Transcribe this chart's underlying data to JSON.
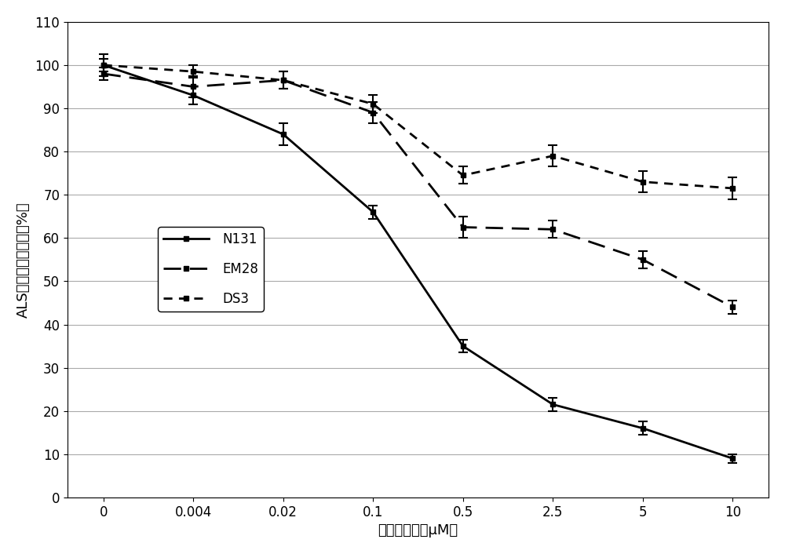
{
  "x_positions": [
    0,
    1,
    2,
    3,
    4,
    5,
    6,
    7
  ],
  "x_labels": [
    "0",
    "0.004",
    "0.02",
    "0.1",
    "0.5",
    "2.5",
    "5",
    "10"
  ],
  "x_label": "甲基二磺隆（μM）",
  "y_label": "ALS酶活（相对于对照%）",
  "ylim": [
    0,
    110
  ],
  "yticks": [
    0,
    10,
    20,
    30,
    40,
    50,
    60,
    70,
    80,
    90,
    100,
    110
  ],
  "N131_y": [
    100.0,
    93.0,
    84.0,
    66.0,
    35.0,
    21.5,
    16.0,
    9.0
  ],
  "N131_err": [
    2.5,
    2.0,
    2.5,
    1.5,
    1.5,
    1.5,
    1.5,
    1.0
  ],
  "EM28_y": [
    98.0,
    95.0,
    96.5,
    89.0,
    62.5,
    62.0,
    55.0,
    44.0
  ],
  "EM28_err": [
    1.5,
    2.5,
    2.0,
    2.5,
    2.5,
    2.0,
    2.0,
    1.5
  ],
  "DS3_y": [
    100.0,
    98.5,
    96.5,
    91.0,
    74.5,
    79.0,
    73.0,
    71.5
  ],
  "DS3_err": [
    1.5,
    1.5,
    2.0,
    2.0,
    2.0,
    2.5,
    2.5,
    2.5
  ],
  "line_color": "#000000",
  "background_color": "#ffffff",
  "legend_labels": [
    "N131",
    "EM28",
    "DS3"
  ],
  "label_fontsize": 13,
  "tick_fontsize": 12,
  "legend_fontsize": 12
}
